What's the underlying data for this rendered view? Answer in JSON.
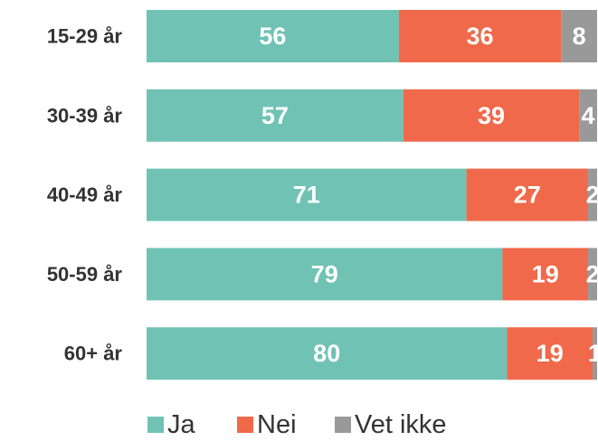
{
  "chart_data": {
    "type": "stacked_bar_horizontal",
    "categories": [
      "15-29 år",
      "30-39 år",
      "40-49 år",
      "50-59 år",
      "60+ år"
    ],
    "series": [
      {
        "name": "Ja",
        "color": "#70c3b4",
        "values": [
          56,
          57,
          71,
          79,
          80
        ]
      },
      {
        "name": "Nei",
        "color": "#f0694a",
        "values": [
          36,
          39,
          27,
          19,
          19
        ]
      },
      {
        "name": "Vet ikke",
        "color": "#999999",
        "values": [
          8,
          4,
          2,
          2,
          1
        ]
      }
    ],
    "xlim": [
      0,
      100
    ],
    "legend": "bottom"
  }
}
